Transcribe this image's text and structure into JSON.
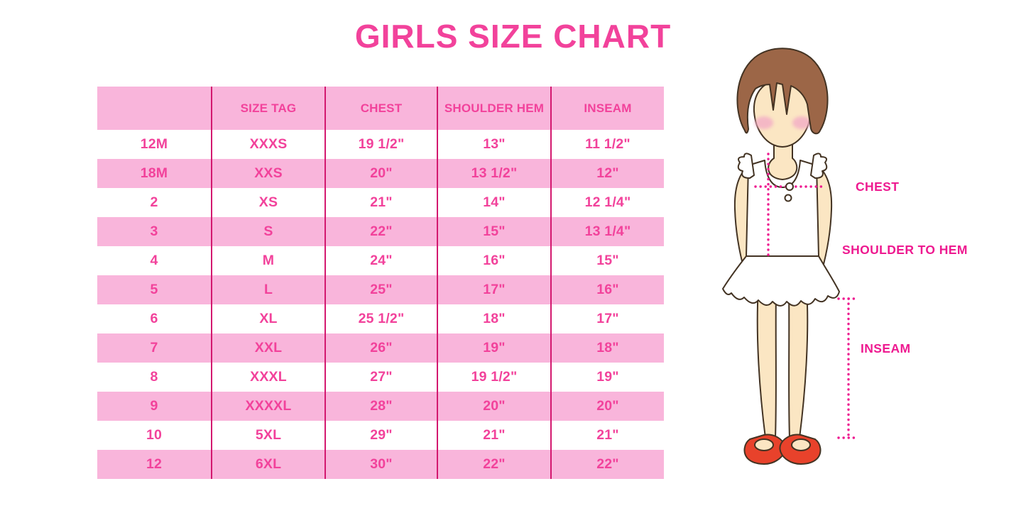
{
  "chart_data": {
    "type": "table",
    "title": "GIRLS SIZE CHART",
    "columns": [
      "",
      "SIZE TAG",
      "CHEST",
      "SHOULDER HEM",
      "INSEAM"
    ],
    "rows": [
      [
        "12M",
        "XXXS",
        "19 1/2\"",
        "13\"",
        "11 1/2\""
      ],
      [
        "18M",
        "XXS",
        "20\"",
        "13 1/2\"",
        "12\""
      ],
      [
        "2",
        "XS",
        "21\"",
        "14\"",
        "12 1/4\""
      ],
      [
        "3",
        "S",
        "22\"",
        "15\"",
        "13 1/4\""
      ],
      [
        "4",
        "M",
        "24\"",
        "16\"",
        "15\""
      ],
      [
        "5",
        "L",
        "25\"",
        "17\"",
        "16\""
      ],
      [
        "6",
        "XL",
        "25 1/2\"",
        "18\"",
        "17\""
      ],
      [
        "7",
        "XXL",
        "26\"",
        "19\"",
        "18\""
      ],
      [
        "8",
        "XXXL",
        "27\"",
        "19 1/2\"",
        "19\""
      ],
      [
        "9",
        "XXXXL",
        "28\"",
        "20\"",
        "20\""
      ],
      [
        "10",
        "5XL",
        "29\"",
        "21\"",
        "21\""
      ],
      [
        "12",
        "6XL",
        "30\"",
        "22\"",
        "22\""
      ]
    ]
  },
  "figure": {
    "labels": {
      "chest": "CHEST",
      "shoulder_to_hem": "SHOULDER TO HEM",
      "inseam": "INSEAM"
    }
  },
  "colors": {
    "accent_pink": "#F2429B",
    "row_pink": "#F9B5DB",
    "divider_pink": "#D3186F",
    "magenta": "#EE1A90",
    "hair_brown": "#9C6647",
    "skin": "#FBE6C3",
    "cheek": "#F3ADC6",
    "outline_dark": "#433323",
    "shoe_red": "#E8422B",
    "background": "#FFFFFF"
  }
}
